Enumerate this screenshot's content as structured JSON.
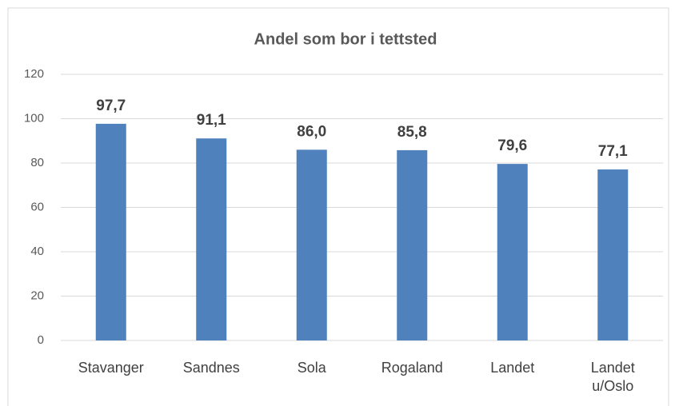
{
  "chart_data": {
    "type": "bar",
    "title": "Andel som bor i tettsted",
    "categories": [
      "Stavanger",
      "Sandnes",
      "Sola",
      "Rogaland",
      "Landet",
      "Landet u/Oslo"
    ],
    "values": [
      97.7,
      91.1,
      86.0,
      85.8,
      79.6,
      77.1
    ],
    "value_labels": [
      "97,7",
      "91,1",
      "86,0",
      "85,8",
      "79,6",
      "77,1"
    ],
    "color": "#4f81bd",
    "ylim": [
      0,
      120
    ],
    "yticks": [
      0,
      20,
      40,
      60,
      80,
      100,
      120
    ],
    "grid": true
  }
}
